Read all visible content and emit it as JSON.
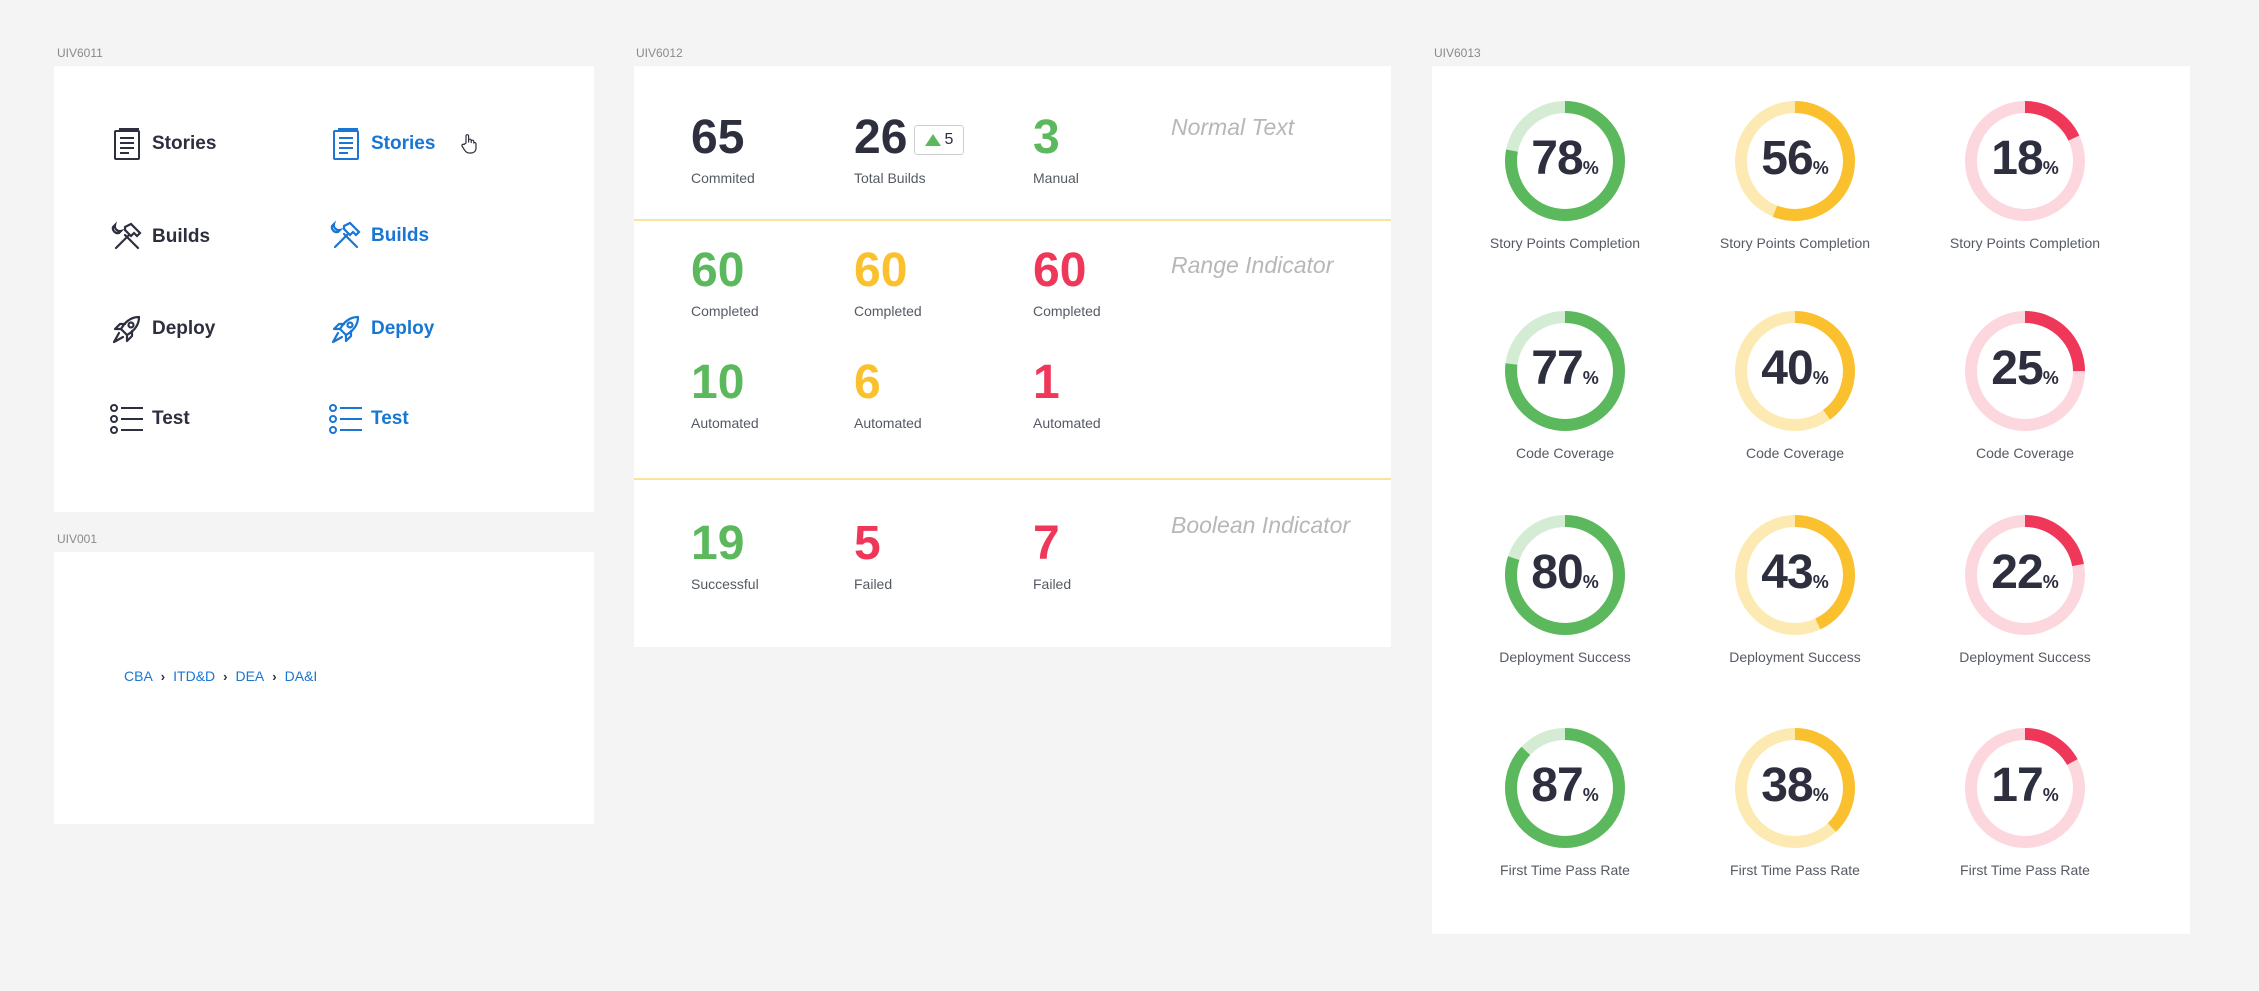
{
  "panels": {
    "p1": "UIV6011",
    "p2": "UIV001",
    "p3": "UIV6012",
    "p4": "UIV6013"
  },
  "nav": {
    "default": [
      {
        "label": "Stories",
        "icon": "document-icon"
      },
      {
        "label": "Builds",
        "icon": "hammer-wrench-icon"
      },
      {
        "label": "Deploy",
        "icon": "rocket-icon"
      },
      {
        "label": "Test",
        "icon": "list-icon"
      }
    ],
    "hover": [
      {
        "label": "Stories",
        "icon": "document-icon"
      },
      {
        "label": "Builds",
        "icon": "hammer-wrench-icon"
      },
      {
        "label": "Deploy",
        "icon": "rocket-icon"
      },
      {
        "label": "Test",
        "icon": "list-icon"
      }
    ],
    "colors": {
      "default": "#2d2f3f",
      "hover": "#1976d2"
    }
  },
  "breadcrumb": [
    "CBA",
    "ITD&D",
    "DEA",
    "DA&I"
  ],
  "metrics": {
    "normal": {
      "title": "Normal Text",
      "items": [
        {
          "value": "65",
          "caption": "Commited"
        },
        {
          "value": "26",
          "caption": "Total Builds",
          "badge": "5"
        },
        {
          "value": "3",
          "caption": "Manual"
        }
      ]
    },
    "range": {
      "title": "Range Indicator",
      "row1": [
        {
          "value": "60",
          "caption": "Completed"
        },
        {
          "value": "60",
          "caption": "Completed"
        },
        {
          "value": "60",
          "caption": "Completed"
        }
      ],
      "row2": [
        {
          "value": "10",
          "caption": "Automated"
        },
        {
          "value": "6",
          "caption": "Automated"
        },
        {
          "value": "1",
          "caption": "Automated"
        }
      ]
    },
    "boolean": {
      "title": "Boolean Indicator",
      "items": [
        {
          "value": "19",
          "caption": "Successful"
        },
        {
          "value": "5",
          "caption": "Failed"
        },
        {
          "value": "7",
          "caption": "Failed"
        }
      ]
    },
    "colors": {
      "green": "#5cb85c",
      "yellow": "#fbc02d",
      "red": "#ef3859",
      "dark": "#2d2f3f"
    }
  },
  "gauges": {
    "percent_sign": "%",
    "rows": [
      {
        "label": "Story Points Completion",
        "values": [
          78,
          56,
          18
        ]
      },
      {
        "label": "Code  Coverage",
        "values": [
          77,
          40,
          25
        ]
      },
      {
        "label": "Deployment Success",
        "values": [
          80,
          43,
          22
        ]
      },
      {
        "label": "First Time Pass Rate",
        "values": [
          87,
          38,
          17
        ]
      }
    ],
    "colors": [
      {
        "fg": "#5cb85c",
        "bg": "#d4ecd4"
      },
      {
        "fg": "#fbc02d",
        "bg": "#fdeab2"
      },
      {
        "fg": "#ef3859",
        "bg": "#fcd7de"
      }
    ]
  }
}
